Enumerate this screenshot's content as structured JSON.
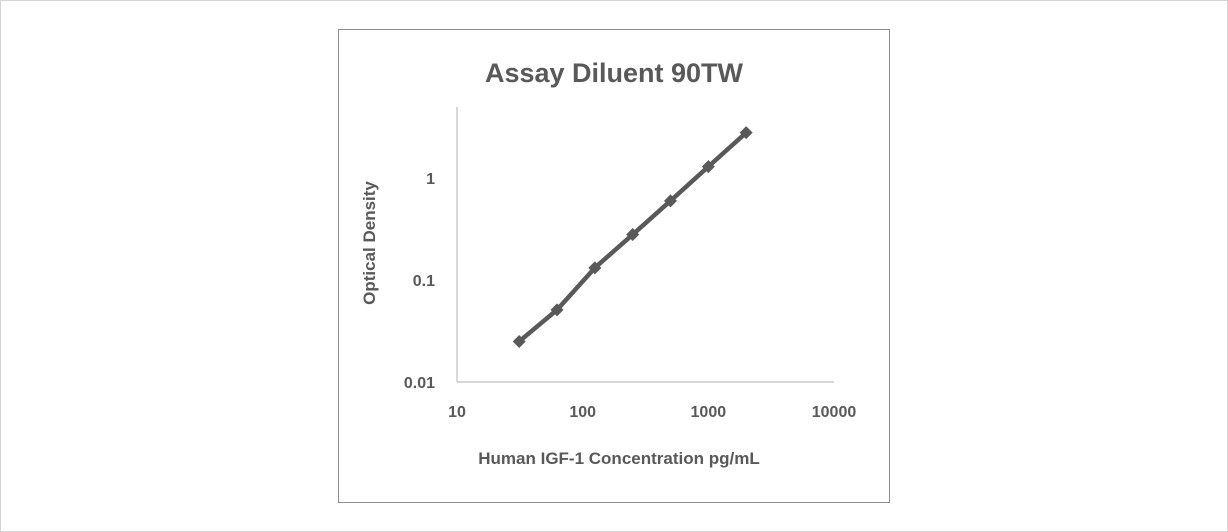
{
  "chart_data": {
    "type": "line",
    "title": "Assay Diluent 90TW",
    "xlabel": "Human IGF-1 Concentration pg/mL",
    "ylabel": "Optical Density",
    "xscale": "log",
    "yscale": "log",
    "xlim": [
      10,
      10000
    ],
    "ylim": [
      0.01,
      5
    ],
    "xticks": [
      "10",
      "100",
      "1000",
      "10000"
    ],
    "yticks": [
      "0.01",
      "0.1",
      "1"
    ],
    "grid": false,
    "legend": "none",
    "series": [
      {
        "color": "#595959",
        "marker": "diamond",
        "x": [
          31.25,
          62.5,
          125,
          250,
          500,
          1000,
          2000
        ],
        "y": [
          0.025,
          0.051,
          0.132,
          0.28,
          0.6,
          1.3,
          2.8
        ]
      }
    ]
  }
}
